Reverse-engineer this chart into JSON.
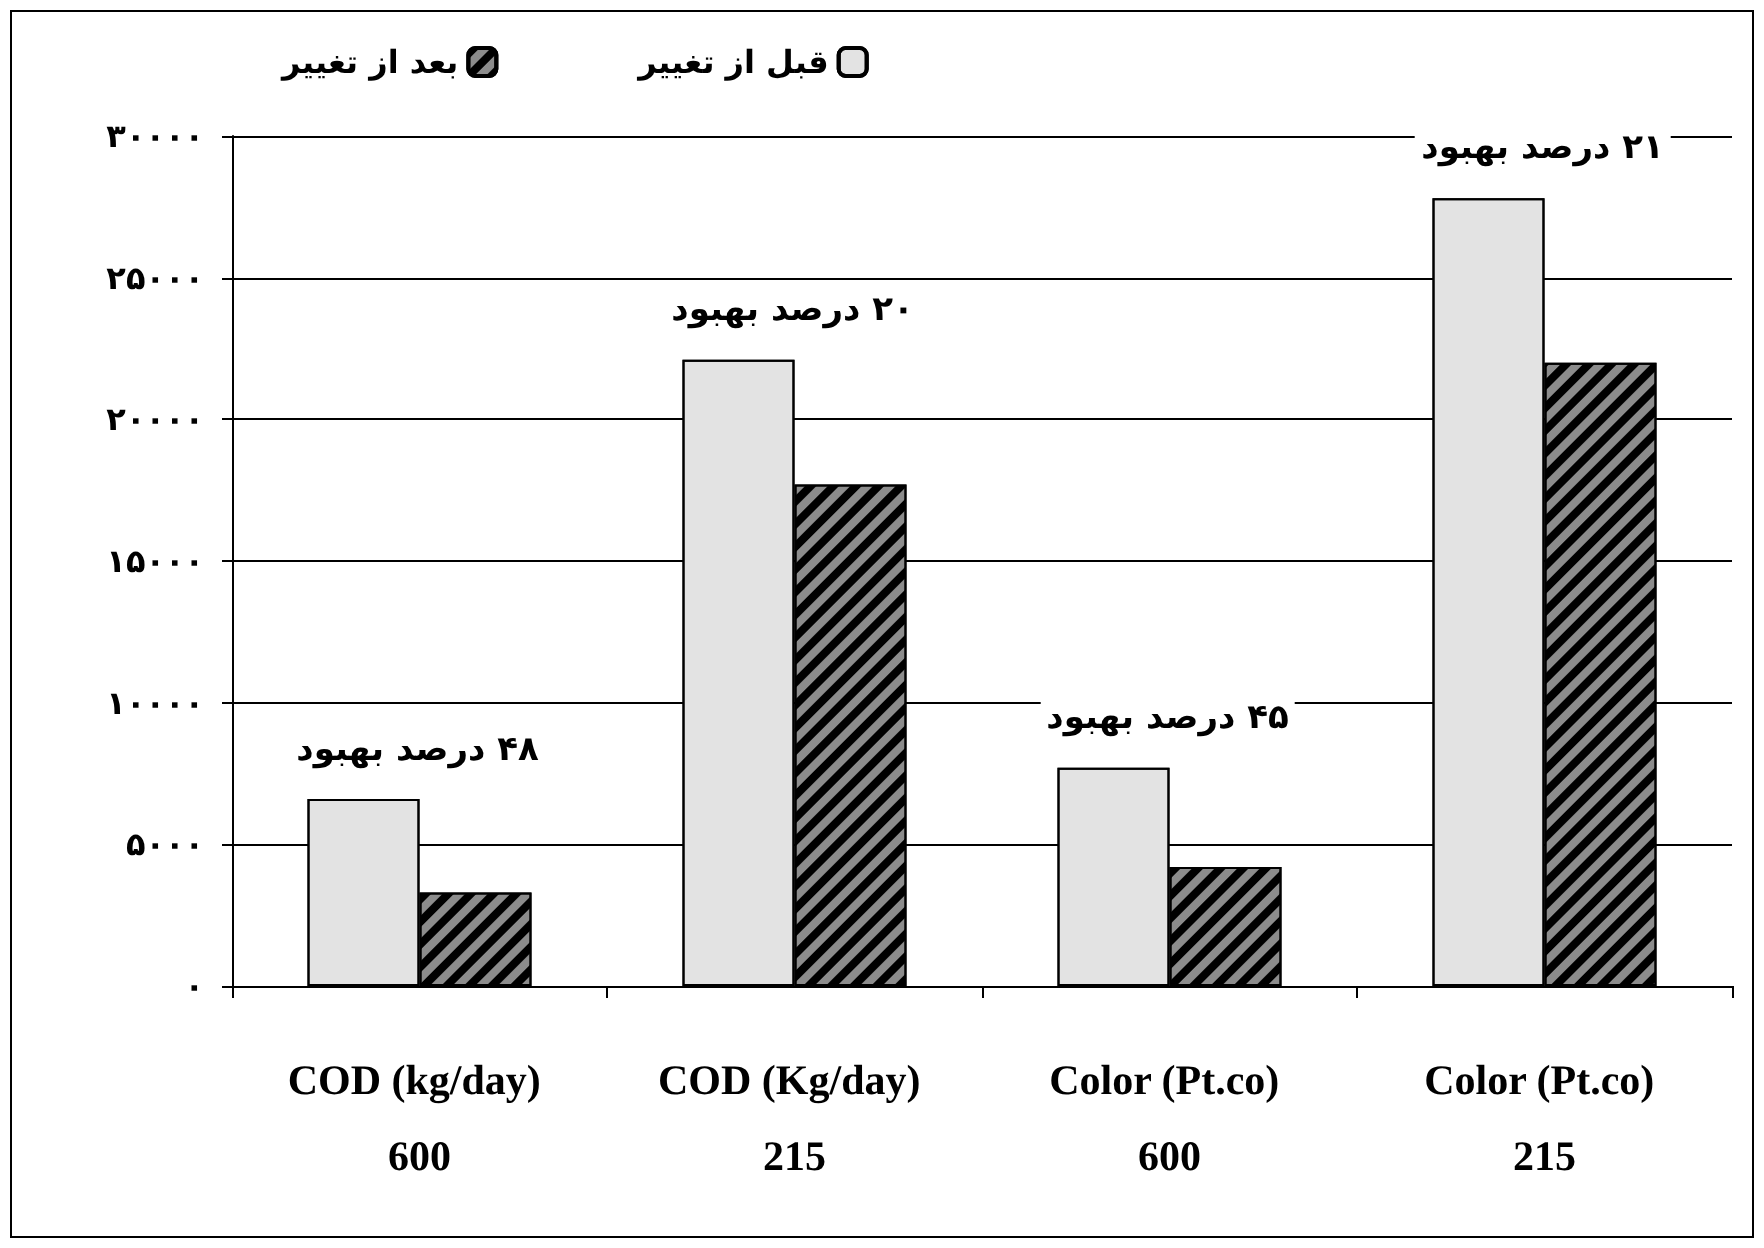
{
  "chart_data": {
    "type": "bar",
    "categories": [
      "COD (kg/day) 600",
      "COD (Kg/day) 215",
      "Color (Pt.co) 600",
      "Color (Pt.co) 215"
    ],
    "series": [
      {
        "name": "قبل از تغییر",
        "color": "#e3e3e3",
        "values": [
          6600,
          22100,
          7700,
          27800
        ]
      },
      {
        "name": "بعد از تغییر",
        "color": "#8c8c8c",
        "values": [
          3300,
          17700,
          4200,
          22000
        ]
      }
    ],
    "ylim": [
      0,
      30000
    ],
    "yticks": [
      {
        "value": 0,
        "label": "۰"
      },
      {
        "value": 5000,
        "label": "۵۰۰۰"
      },
      {
        "value": 10000,
        "label": "۱۰۰۰۰"
      },
      {
        "value": 15000,
        "label": "۱۵۰۰۰"
      },
      {
        "value": 20000,
        "label": "۲۰۰۰۰"
      },
      {
        "value": 25000,
        "label": "۲۵۰۰۰"
      },
      {
        "value": 30000,
        "label": "۳۰۰۰۰"
      }
    ],
    "annotations": [
      "۴۸ درصد بهبود",
      "۲۰ درصد بهبود",
      "۴۵ درصد بهبود",
      "۲۱ درصد بهبود"
    ],
    "grid": "y",
    "legend": "top"
  }
}
